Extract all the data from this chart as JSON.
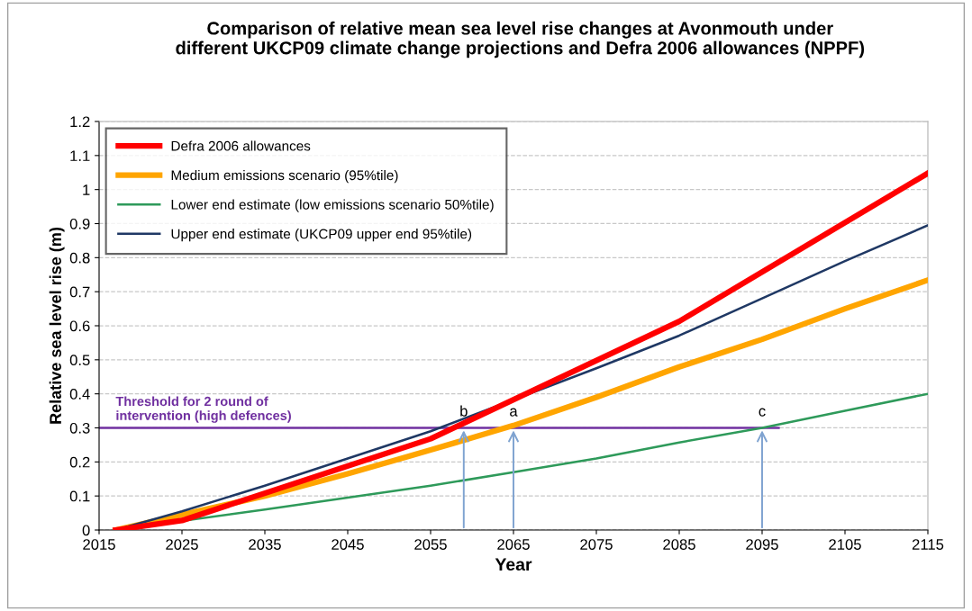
{
  "chart_data": {
    "type": "line",
    "title": "Comparison of relative mean sea level rise changes at Avonmouth under\ndifferent UKCP09 climate change projections and Defra 2006 allowances (NPPF)",
    "xlabel": "Year",
    "ylabel": "Relative sea level rise (m)",
    "series": [
      {
        "name": "Defra 2006 allowances",
        "color": "#ff0000",
        "x": [
          2017,
          2025,
          2055,
          2085,
          2115
        ],
        "values": [
          0,
          0.028,
          0.268,
          0.613,
          1.048
        ]
      },
      {
        "name": "Medium emissions scenario (95%tile)",
        "color": "#ffa500",
        "x": [
          2017,
          2025,
          2035,
          2045,
          2055,
          2065,
          2075,
          2085,
          2095,
          2105,
          2115
        ],
        "values": [
          0,
          0.045,
          0.1,
          0.165,
          0.235,
          0.307,
          0.39,
          0.479,
          0.56,
          0.65,
          0.734
        ]
      },
      {
        "name": "Lower end estimate (low emissions scenario 50%tile)",
        "color": "#2e9a5a",
        "x": [
          2017,
          2035,
          2045,
          2055,
          2065,
          2075,
          2085,
          2095,
          2105,
          2115
        ],
        "values": [
          0,
          0.06,
          0.095,
          0.13,
          0.17,
          0.21,
          0.257,
          0.3,
          0.35,
          0.4
        ]
      },
      {
        "name": "Upper end estimate (UKCP09 upper end 95%tile)",
        "color": "#1f3864",
        "x": [
          2017,
          2025,
          2035,
          2045,
          2055,
          2075,
          2085,
          2095,
          2105,
          2115
        ],
        "values": [
          0,
          0.055,
          0.13,
          0.21,
          0.29,
          0.475,
          0.571,
          0.68,
          0.79,
          0.895
        ]
      }
    ],
    "ref_lines": [
      {
        "axis": "y",
        "value": 0.3,
        "label": "Threshold for 2 round of\nintervention (high defences)",
        "color": "#7030a0",
        "line_style": "solid"
      }
    ],
    "annotations": [
      {
        "text": "b",
        "x": 2059,
        "y": 0.3
      },
      {
        "text": "a",
        "x": 2065,
        "y": 0.3
      },
      {
        "text": "c",
        "x": 2095,
        "y": 0.3
      }
    ],
    "xlim": [
      2015,
      2115
    ],
    "xticks": [
      2015,
      2025,
      2035,
      2045,
      2055,
      2065,
      2075,
      2085,
      2095,
      2105,
      2115
    ],
    "ylim": [
      0,
      1.2
    ],
    "yticks": [
      0,
      0.1,
      0.2,
      0.3,
      0.4,
      0.5,
      0.6,
      0.7,
      0.8,
      0.9,
      1,
      1.1,
      1.2
    ],
    "grid": "y",
    "legend": "top left",
    "marker": "none",
    "line_style": "solid"
  }
}
